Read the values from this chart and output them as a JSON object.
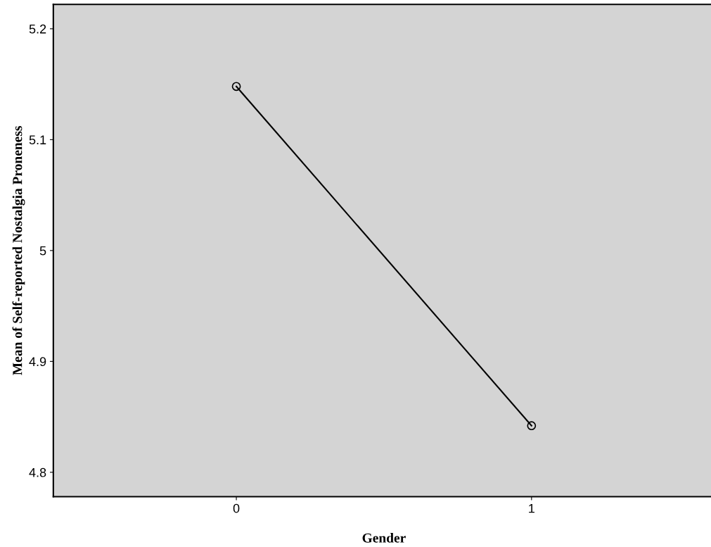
{
  "chart_data": {
    "type": "line",
    "xlabel": "Gender",
    "ylabel": "Mean of Self-reported Nostalgia Proneness",
    "categories": [
      "0",
      "1"
    ],
    "series": [
      {
        "color": "#000000",
        "values": [
          5.148,
          4.842
        ]
      }
    ],
    "ylim": [
      4.778,
      5.222
    ],
    "yticks": [
      4.8,
      4.9,
      {
        "value": 5.0,
        "label": "5"
      },
      5.1,
      5.2
    ],
    "marker": "circle",
    "line_style": "solid",
    "grid": false
  }
}
